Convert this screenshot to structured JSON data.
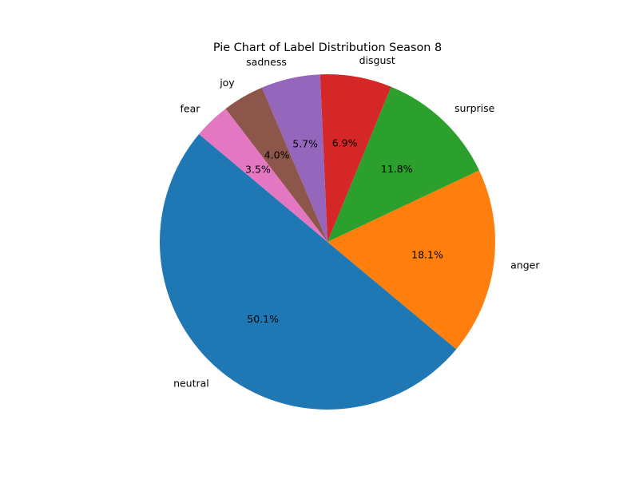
{
  "chart_data": {
    "type": "pie",
    "title": "Pie Chart of Label Distribution Season 8",
    "start_angle_deg": 140,
    "direction": "counterclockwise",
    "slices": [
      {
        "label": "neutral",
        "value": 50.1,
        "pct_text": "50.1%",
        "color": "#1f77b4"
      },
      {
        "label": "anger",
        "value": 18.1,
        "pct_text": "18.1%",
        "color": "#ff7f0e"
      },
      {
        "label": "surprise",
        "value": 11.8,
        "pct_text": "11.8%",
        "color": "#2ca02c"
      },
      {
        "label": "disgust",
        "value": 6.9,
        "pct_text": "6.9%",
        "color": "#d62728"
      },
      {
        "label": "sadness",
        "value": 5.7,
        "pct_text": "5.7%",
        "color": "#9467bd"
      },
      {
        "label": "joy",
        "value": 4.0,
        "pct_text": "4.0%",
        "color": "#8c564b"
      },
      {
        "label": "fear",
        "value": 3.5,
        "pct_text": "3.5%",
        "color": "#e377c2"
      }
    ]
  }
}
